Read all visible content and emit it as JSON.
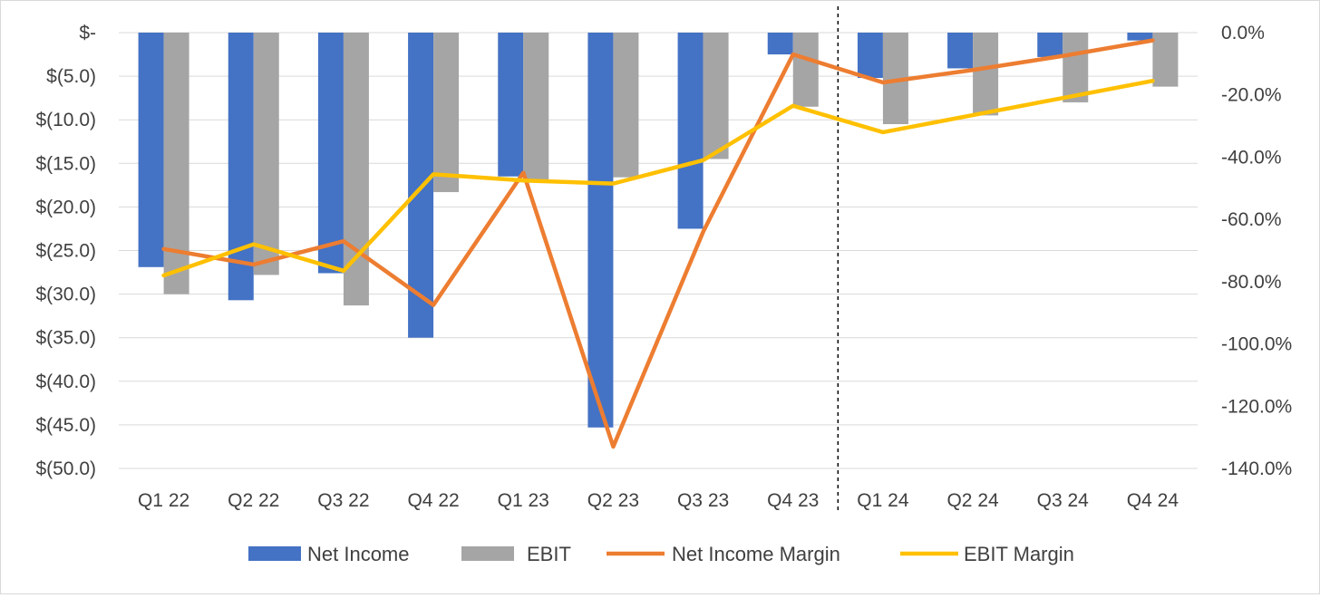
{
  "chart_data": {
    "type": "bar",
    "title": "",
    "categories": [
      "Q1 22",
      "Q2 22",
      "Q3 22",
      "Q4 22",
      "Q1 23",
      "Q2 23",
      "Q3 23",
      "Q4 23",
      "Q1 24",
      "Q2 24",
      "Q3 24",
      "Q4 24"
    ],
    "bar_series": [
      {
        "name": "Net Income",
        "color": "#4472C4",
        "values": [
          -26.9,
          -30.7,
          -27.6,
          -35.0,
          -16.5,
          -45.3,
          -22.5,
          -2.5,
          -5.2,
          -4.1,
          -2.8,
          -0.9
        ]
      },
      {
        "name": "EBIT",
        "color": "#A5A5A5",
        "values": [
          -30.0,
          -27.8,
          -31.3,
          -18.3,
          -17.0,
          -16.6,
          -14.5,
          -8.5,
          -10.5,
          -9.5,
          -8.0,
          -6.2
        ]
      }
    ],
    "line_series": [
      {
        "name": "Net Income Margin",
        "color": "#ED7D31",
        "values": [
          -69.5,
          -74.5,
          -67.0,
          -87.5,
          -45.0,
          -133.0,
          -64.0,
          -7.0,
          -16.0,
          -12.0,
          -7.5,
          -2.5
        ]
      },
      {
        "name": "EBIT Margin",
        "color": "#FFC000",
        "values": [
          -78.0,
          -68.0,
          -76.5,
          -45.5,
          -47.5,
          -48.5,
          -41.0,
          -23.5,
          -32.0,
          -26.5,
          -21.0,
          -15.5
        ]
      }
    ],
    "y_left": {
      "min": -50,
      "max": 0,
      "step": 5,
      "ticks": [
        "$-",
        "$(5.0)",
        "$(10.0)",
        "$(15.0)",
        "$(20.0)",
        "$(25.0)",
        "$(30.0)",
        "$(35.0)",
        "$(40.0)",
        "$(45.0)",
        "$(50.0)"
      ]
    },
    "y_right": {
      "min": -140,
      "max": 0,
      "step": 20,
      "ticks": [
        "0.0%",
        "-20.0%",
        "-40.0%",
        "-60.0%",
        "-80.0%",
        "-100.0%",
        "-120.0%",
        "-140.0%"
      ]
    },
    "divider_after_category": "Q4 23",
    "legend": {
      "position": "bottom",
      "entries": [
        "Net Income",
        "EBIT",
        "Net Income Margin",
        "EBIT Margin"
      ]
    },
    "grid": true,
    "gridline_color": "#d9d9d9"
  }
}
